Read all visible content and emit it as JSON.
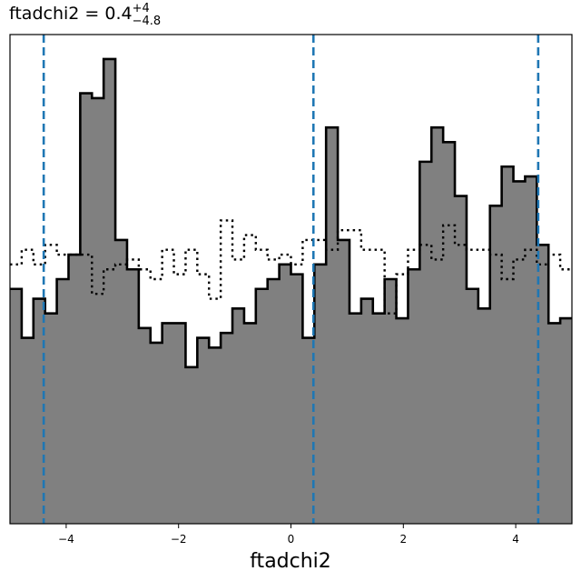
{
  "chart_data": {
    "type": "histogram",
    "title": {
      "base": "ftadchi2 = 0.4",
      "sup": "+4",
      "sub": "−4.8"
    },
    "xlabel": "ftadchi2",
    "ylabel": "",
    "xlim": [
      -5,
      5
    ],
    "ylim": [
      0,
      1
    ],
    "x_ticks": [
      {
        "value": -4,
        "label": "−4"
      },
      {
        "value": -2,
        "label": "−2"
      },
      {
        "value": 0,
        "label": "0"
      },
      {
        "value": 2,
        "label": "2"
      },
      {
        "value": 4,
        "label": "4"
      }
    ],
    "bin_edges_range": [
      -5,
      5
    ],
    "bins": 48,
    "series": [
      {
        "style": "filled",
        "fill": "#808080",
        "edge": "#000000",
        "values": [
          0.48,
          0.38,
          0.46,
          0.43,
          0.5,
          0.55,
          0.88,
          0.87,
          0.95,
          0.58,
          0.52,
          0.4,
          0.37,
          0.41,
          0.41,
          0.32,
          0.38,
          0.36,
          0.39,
          0.44,
          0.41,
          0.48,
          0.5,
          0.53,
          0.51,
          0.38,
          0.53,
          0.81,
          0.58,
          0.43,
          0.46,
          0.43,
          0.5,
          0.42,
          0.52,
          0.74,
          0.81,
          0.78,
          0.67,
          0.48,
          0.44,
          0.65,
          0.73,
          0.7,
          0.71,
          0.57,
          0.41,
          0.42
        ]
      },
      {
        "style": "step-dotted",
        "edge": "#000000",
        "values": [
          0.53,
          0.56,
          0.53,
          0.57,
          0.55,
          0.55,
          0.55,
          0.47,
          0.52,
          0.53,
          0.54,
          0.52,
          0.5,
          0.56,
          0.51,
          0.56,
          0.51,
          0.46,
          0.62,
          0.54,
          0.59,
          0.56,
          0.54,
          0.55,
          0.53,
          0.58,
          0.58,
          0.56,
          0.6,
          0.6,
          0.56,
          0.56,
          0.43,
          0.51,
          0.56,
          0.57,
          0.54,
          0.61,
          0.57,
          0.56,
          0.56,
          0.55,
          0.5,
          0.54,
          0.56,
          0.53,
          0.55,
          0.52
        ]
      }
    ],
    "vlines": {
      "color": "#1f77b4",
      "style": "dashed",
      "x": [
        -4.4,
        0.4,
        4.4
      ]
    },
    "grid": false,
    "legend": "none"
  }
}
